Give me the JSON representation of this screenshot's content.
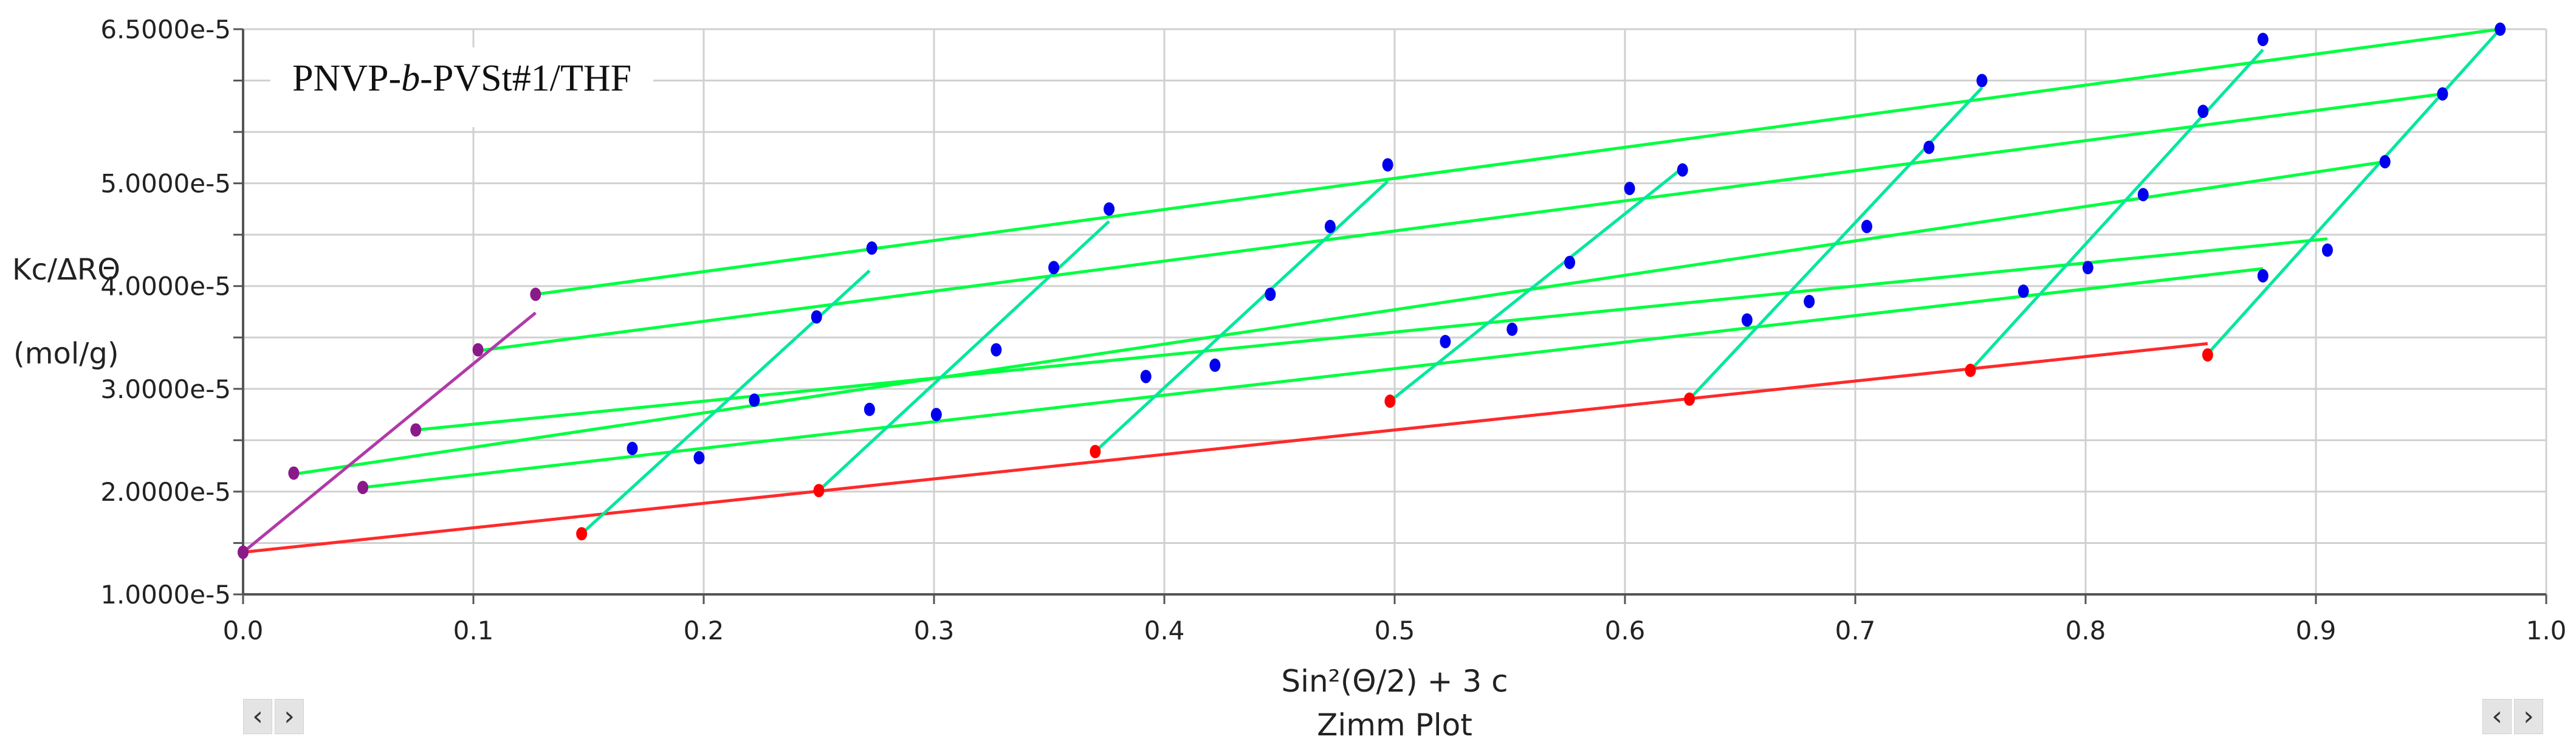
{
  "sample_label": {
    "prefix": "PNVP-",
    "italic": "b",
    "suffix": "-PVSt#1/THF"
  },
  "nav": {
    "prev_symbol": "‹",
    "next_symbol": "›"
  },
  "colors": {
    "concentration_lines": "#00ff40",
    "angle_lines": "#00e89c",
    "zero_angle_line": "#ff2a2a",
    "zero_conc_line": "#b03aa8",
    "points": "#0000ee",
    "zero_angle_points": "#ff0000",
    "zero_conc_points": "#8a1a8a",
    "grid": "#d0d0d0"
  },
  "chart_data": {
    "type": "scatter",
    "title": "Zimm Plot",
    "xlabel": "Sin²(Θ/2) + 3 c",
    "ylabel": [
      "Kc/ΔRΘ",
      "(mol/g)"
    ],
    "xlim": [
      0,
      1
    ],
    "ylim": [
      1e-05,
      6.5e-05
    ],
    "x_ticks": [
      "0.0",
      "0.1",
      "0.2",
      "0.3",
      "0.4",
      "0.5",
      "0.6",
      "0.7",
      "0.8",
      "0.9",
      "1.0"
    ],
    "y_ticks": [
      {
        "value": 1e-05,
        "label": "1.0000e-5"
      },
      {
        "value": 2e-05,
        "label": "2.0000e-5"
      },
      {
        "value": 3e-05,
        "label": "3.0000e-5"
      },
      {
        "value": 4e-05,
        "label": "4.0000e-5"
      },
      {
        "value": 5e-05,
        "label": "5.0000e-5"
      },
      {
        "value": 6.5e-05,
        "label": "6.5000e-5"
      }
    ],
    "grid": true,
    "series": [
      {
        "role": "concentration-fit",
        "line": [
          [
            0.127,
            3.92e-05
          ],
          [
            0.98,
            6.5e-05
          ]
        ]
      },
      {
        "role": "concentration-fit",
        "line": [
          [
            0.102,
            3.37e-05
          ],
          [
            0.955,
            5.87e-05
          ]
        ]
      },
      {
        "role": "concentration-fit",
        "line": [
          [
            0.022,
            2.17e-05
          ],
          [
            0.93,
            5.21e-05
          ]
        ]
      },
      {
        "role": "concentration-fit",
        "line": [
          [
            0.075,
            2.6e-05
          ],
          [
            0.905,
            4.46e-05
          ]
        ]
      },
      {
        "role": "concentration-fit",
        "line": [
          [
            0.052,
            2.04e-05
          ],
          [
            0.877,
            4.17e-05
          ]
        ]
      },
      {
        "role": "zero-angle-fit",
        "line": [
          [
            0.0,
            1.41e-05
          ],
          [
            0.853,
            3.44e-05
          ]
        ]
      },
      {
        "role": "zero-conc-fit",
        "line": [
          [
            0.0,
            1.41e-05
          ],
          [
            0.127,
            3.74e-05
          ]
        ]
      },
      {
        "role": "angle-fit",
        "line": [
          [
            0.147,
            1.59e-05
          ],
          [
            0.272,
            4.15e-05
          ]
        ]
      },
      {
        "role": "angle-fit",
        "line": [
          [
            0.25,
            2.01e-05
          ],
          [
            0.376,
            4.63e-05
          ]
        ]
      },
      {
        "role": "angle-fit",
        "line": [
          [
            0.37,
            2.39e-05
          ],
          [
            0.497,
            5.02e-05
          ]
        ]
      },
      {
        "role": "angle-fit",
        "line": [
          [
            0.498,
            2.88e-05
          ],
          [
            0.625,
            5.15e-05
          ]
        ]
      },
      {
        "role": "angle-fit",
        "line": [
          [
            0.628,
            2.9e-05
          ],
          [
            0.755,
            5.93e-05
          ]
        ]
      },
      {
        "role": "angle-fit",
        "line": [
          [
            0.75,
            3.18e-05
          ],
          [
            0.877,
            6.3e-05
          ]
        ]
      },
      {
        "role": "angle-fit",
        "line": [
          [
            0.853,
            3.34e-05
          ],
          [
            0.98,
            6.5e-05
          ]
        ]
      },
      {
        "role": "measured",
        "points": [
          [
            0.273,
            4.37e-05
          ],
          [
            0.376,
            4.75e-05
          ],
          [
            0.497,
            5.18e-05
          ],
          [
            0.625,
            5.13e-05
          ],
          [
            0.755,
            6e-05
          ],
          [
            0.877,
            6.4e-05
          ],
          [
            0.98,
            6.5e-05
          ],
          [
            0.249,
            3.7e-05
          ],
          [
            0.352,
            4.18e-05
          ],
          [
            0.472,
            4.58e-05
          ],
          [
            0.602,
            4.95e-05
          ],
          [
            0.732,
            5.35e-05
          ],
          [
            0.851,
            5.7e-05
          ],
          [
            0.955,
            5.87e-05
          ],
          [
            0.327,
            3.38e-05
          ],
          [
            0.446,
            3.92e-05
          ],
          [
            0.576,
            4.23e-05
          ],
          [
            0.705,
            4.58e-05
          ],
          [
            0.825,
            4.89e-05
          ],
          [
            0.93,
            5.21e-05
          ],
          [
            0.222,
            2.89e-05
          ],
          [
            0.301,
            2.75e-05
          ],
          [
            0.422,
            3.23e-05
          ],
          [
            0.551,
            3.58e-05
          ],
          [
            0.68,
            3.85e-05
          ],
          [
            0.801,
            4.18e-05
          ],
          [
            0.905,
            4.35e-05
          ],
          [
            0.169,
            2.42e-05
          ],
          [
            0.198,
            2.33e-05
          ],
          [
            0.272,
            2.8e-05
          ],
          [
            0.392,
            3.12e-05
          ],
          [
            0.522,
            3.46e-05
          ],
          [
            0.653,
            3.67e-05
          ],
          [
            0.773,
            3.95e-05
          ],
          [
            0.877,
            4.1e-05
          ]
        ]
      },
      {
        "role": "zero-angle-extrapolated",
        "points": [
          [
            0.0,
            1.41e-05
          ],
          [
            0.147,
            1.59e-05
          ],
          [
            0.25,
            2.01e-05
          ],
          [
            0.37,
            2.39e-05
          ],
          [
            0.498,
            2.88e-05
          ],
          [
            0.628,
            2.9e-05
          ],
          [
            0.75,
            3.18e-05
          ],
          [
            0.853,
            3.33e-05
          ]
        ]
      },
      {
        "role": "zero-conc-extrapolated",
        "points": [
          [
            0.0,
            1.41e-05
          ],
          [
            0.022,
            2.18e-05
          ],
          [
            0.052,
            2.04e-05
          ],
          [
            0.075,
            2.6e-05
          ],
          [
            0.102,
            3.38e-05
          ],
          [
            0.127,
            3.92e-05
          ]
        ]
      }
    ]
  }
}
